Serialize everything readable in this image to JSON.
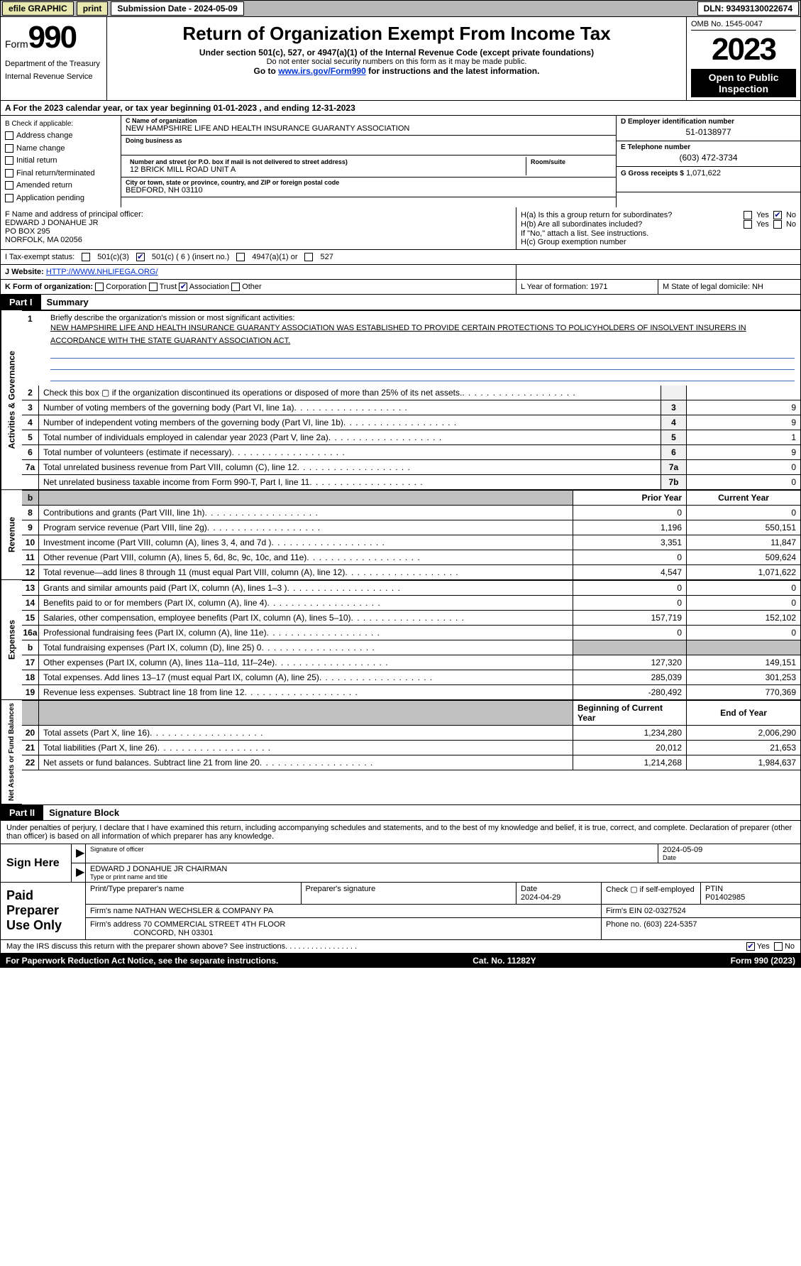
{
  "topbar": {
    "efile_label": "efile GRAPHIC",
    "print_label": "print",
    "submission_label": "Submission Date - 2024-05-09",
    "dln_label": "DLN: 93493130022674"
  },
  "header": {
    "form_word": "Form",
    "form_no": "990",
    "dept": "Department of the Treasury",
    "irs": "Internal Revenue Service",
    "title": "Return of Organization Exempt From Income Tax",
    "sub1": "Under section 501(c), 527, or 4947(a)(1) of the Internal Revenue Code (except private foundations)",
    "sub2": "Do not enter social security numbers on this form as it may be made public.",
    "sub3_pre": "Go to ",
    "sub3_link": "www.irs.gov/Form990",
    "sub3_post": " for instructions and the latest information.",
    "omb": "OMB No. 1545-0047",
    "year": "2023",
    "open": "Open to Public Inspection"
  },
  "rowA": "A For the 2023 calendar year, or tax year beginning 01-01-2023   , and ending 12-31-2023",
  "colB": {
    "head": "B Check if applicable:",
    "opts": [
      "Address change",
      "Name change",
      "Initial return",
      "Final return/terminated",
      "Amended return",
      "Application pending"
    ]
  },
  "colC": {
    "name_lbl": "C Name of organization",
    "name_val": "NEW HAMPSHIRE LIFE AND HEALTH INSURANCE GUARANTY ASSOCIATION",
    "dba_lbl": "Doing business as",
    "addr_lbl": "Number and street (or P.O. box if mail is not delivered to street address)",
    "addr_val": "12 BRICK MILL ROAD UNIT A",
    "room_lbl": "Room/suite",
    "city_lbl": "City or town, state or province, country, and ZIP or foreign postal code",
    "city_val": "BEDFORD, NH  03110"
  },
  "colD": {
    "d_lbl": "D Employer identification number",
    "d_val": "51-0138977",
    "e_lbl": "E Telephone number",
    "e_val": "(603) 472-3734",
    "g_lbl": "G Gross receipts $",
    "g_val": "1,071,622"
  },
  "rowF": {
    "f_lbl": "F Name and address of principal officer:",
    "f_name": "EDWARD J DONAHUE JR",
    "f_addr1": "PO BOX 295",
    "f_addr2": "NORFOLK, MA  02056",
    "h_a": "H(a)  Is this a group return for subordinates?",
    "h_b": "H(b)  Are all subordinates included?",
    "h_b2": "If \"No,\" attach a list. See instructions.",
    "h_c": "H(c)  Group exemption number ",
    "yes": "Yes",
    "no": "No"
  },
  "rowI": {
    "lbl": "I  Tax-exempt status:",
    "o1": "501(c)(3)",
    "o2": "501(c) ( 6 ) (insert no.)",
    "o3": "4947(a)(1) or",
    "o4": "527"
  },
  "rowJ": {
    "lbl": "J  Website: ",
    "val": "HTTP://WWW.NHLIFEGA.ORG/"
  },
  "rowK": {
    "lbl": "K Form of organization:",
    "o1": "Corporation",
    "o2": "Trust",
    "o3": "Association",
    "o4": "Other",
    "l": "L Year of formation: 1971",
    "m": "M State of legal domicile: NH"
  },
  "part1": {
    "pt": "Part I",
    "name": "Summary"
  },
  "brief": {
    "n": "1",
    "q": "Briefly describe the organization's mission or most significant activities:",
    "ans": "NEW HAMPSHIRE LIFE AND HEALTH INSURANCE GUARANTY ASSOCIATION WAS ESTABLISHED TO PROVIDE CERTAIN PROTECTIONS TO POLICYHOLDERS OF INSOLVENT INSURERS IN ACCORDANCE WITH THE STATE GUARANTY ASSOCIATION ACT."
  },
  "gov_label": "Activities & Governance",
  "rev_label": "Revenue",
  "exp_label": "Expenses",
  "na_label": "Net Assets or Fund Balances",
  "gov_rows": [
    {
      "n": "2",
      "t": "Check this box ▢ if the organization discontinued its operations or disposed of more than 25% of its net assets.",
      "box": "",
      "v": ""
    },
    {
      "n": "3",
      "t": "Number of voting members of the governing body (Part VI, line 1a)",
      "box": "3",
      "v": "9"
    },
    {
      "n": "4",
      "t": "Number of independent voting members of the governing body (Part VI, line 1b)",
      "box": "4",
      "v": "9"
    },
    {
      "n": "5",
      "t": "Total number of individuals employed in calendar year 2023 (Part V, line 2a)",
      "box": "5",
      "v": "1"
    },
    {
      "n": "6",
      "t": "Total number of volunteers (estimate if necessary)",
      "box": "6",
      "v": "9"
    },
    {
      "n": "7a",
      "t": "Total unrelated business revenue from Part VIII, column (C), line 12",
      "box": "7a",
      "v": "0"
    },
    {
      "n": "",
      "t": "Net unrelated business taxable income from Form 990-T, Part I, line 11",
      "box": "7b",
      "v": "0"
    }
  ],
  "rev_hdr": {
    "b": "b",
    "py": "Prior Year",
    "cy": "Current Year"
  },
  "rev_rows": [
    {
      "n": "8",
      "t": "Contributions and grants (Part VIII, line 1h)",
      "py": "0",
      "cy": "0"
    },
    {
      "n": "9",
      "t": "Program service revenue (Part VIII, line 2g)",
      "py": "1,196",
      "cy": "550,151"
    },
    {
      "n": "10",
      "t": "Investment income (Part VIII, column (A), lines 3, 4, and 7d )",
      "py": "3,351",
      "cy": "11,847"
    },
    {
      "n": "11",
      "t": "Other revenue (Part VIII, column (A), lines 5, 6d, 8c, 9c, 10c, and 11e)",
      "py": "0",
      "cy": "509,624"
    },
    {
      "n": "12",
      "t": "Total revenue—add lines 8 through 11 (must equal Part VIII, column (A), line 12)",
      "py": "4,547",
      "cy": "1,071,622"
    }
  ],
  "exp_rows": [
    {
      "n": "13",
      "t": "Grants and similar amounts paid (Part IX, column (A), lines 1–3 )",
      "py": "0",
      "cy": "0"
    },
    {
      "n": "14",
      "t": "Benefits paid to or for members (Part IX, column (A), line 4)",
      "py": "0",
      "cy": "0"
    },
    {
      "n": "15",
      "t": "Salaries, other compensation, employee benefits (Part IX, column (A), lines 5–10)",
      "py": "157,719",
      "cy": "152,102"
    },
    {
      "n": "16a",
      "t": "Professional fundraising fees (Part IX, column (A), line 11e)",
      "py": "0",
      "cy": "0"
    },
    {
      "n": "b",
      "t": "Total fundraising expenses (Part IX, column (D), line 25) 0",
      "py": "",
      "cy": "",
      "grey": true
    },
    {
      "n": "17",
      "t": "Other expenses (Part IX, column (A), lines 11a–11d, 11f–24e)",
      "py": "127,320",
      "cy": "149,151"
    },
    {
      "n": "18",
      "t": "Total expenses. Add lines 13–17 (must equal Part IX, column (A), line 25)",
      "py": "285,039",
      "cy": "301,253"
    },
    {
      "n": "19",
      "t": "Revenue less expenses. Subtract line 18 from line 12",
      "py": "-280,492",
      "cy": "770,369"
    }
  ],
  "na_hdr": {
    "py": "Beginning of Current Year",
    "cy": "End of Year"
  },
  "na_rows": [
    {
      "n": "20",
      "t": "Total assets (Part X, line 16)",
      "py": "1,234,280",
      "cy": "2,006,290"
    },
    {
      "n": "21",
      "t": "Total liabilities (Part X, line 26)",
      "py": "20,012",
      "cy": "21,653"
    },
    {
      "n": "22",
      "t": "Net assets or fund balances. Subtract line 21 from line 20",
      "py": "1,214,268",
      "cy": "1,984,637"
    }
  ],
  "part2": {
    "pt": "Part II",
    "name": "Signature Block"
  },
  "sig_text": "Under penalties of perjury, I declare that I have examined this return, including accompanying schedules and statements, and to the best of my knowledge and belief, it is true, correct, and complete. Declaration of preparer (other than officer) is based on all information of which preparer has any knowledge.",
  "sign": {
    "lab": "Sign Here",
    "sig_lbl": "Signature of officer",
    "date_lbl": "Date",
    "date_val": "2024-05-09",
    "name_val": "EDWARD J DONAHUE JR  CHAIRMAN",
    "name_lbl": "Type or print name and title"
  },
  "paid": {
    "lab": "Paid Preparer Use Only",
    "pname_lbl": "Print/Type preparer's name",
    "psig_lbl": "Preparer's signature",
    "pdate_lbl": "Date",
    "pdate_val": "2024-04-29",
    "pcheck_lbl": "Check ▢ if self-employed",
    "ptin_lbl": "PTIN",
    "ptin_val": "P01402985",
    "firm_lbl": "Firm's name  ",
    "firm_val": "NATHAN WECHSLER & COMPANY PA",
    "fein_lbl": "Firm's EIN  ",
    "fein_val": "02-0327524",
    "faddr_lbl": "Firm's address ",
    "faddr_val1": "70 COMMERCIAL STREET 4TH FLOOR",
    "faddr_val2": "CONCORD, NH  03301",
    "fphone_lbl": "Phone no. ",
    "fphone_val": "(603) 224-5357"
  },
  "irs_discuss": "May the IRS discuss this return with the preparer shown above? See instructions.",
  "irs_yes": "Yes",
  "irs_no": "No",
  "footer": {
    "l": "For Paperwork Reduction Act Notice, see the separate instructions.",
    "c": "Cat. No. 11282Y",
    "r": "Form 990 (2023)"
  },
  "colors": {
    "topbar_bg": "#b8b8b8",
    "btn_bg": "#e8e8b0",
    "link": "#0033cc",
    "blank_line": "#4169b8"
  }
}
